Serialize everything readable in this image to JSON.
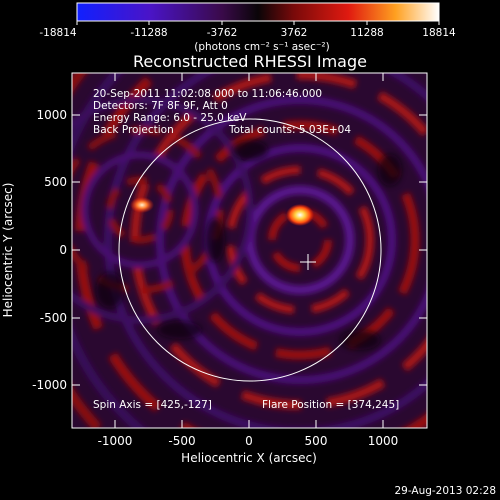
{
  "colorbar": {
    "tick_labels": [
      "-18814",
      "-11288",
      "-3762",
      "3762",
      "11288",
      "18814"
    ],
    "unit_label": "(photons cm⁻² s⁻¹ asec⁻²)"
  },
  "plot": {
    "title": "Reconstructed RHESSI Image",
    "info_lines": [
      "20-Sep-2011 11:02:08.000 to 11:06:46.000",
      "Detectors: 7F 8F 9F, Att 0",
      "Energy Range: 6.0 - 25.0 keV"
    ],
    "method": "Back Projection",
    "total_counts": "Total counts: 5.03E+04",
    "spin_axis": "Spin Axis = [425,-127]",
    "flare_position": "Flare Position = [374,245]",
    "xlabel": "Heliocentric X (arcsec)",
    "ylabel": "Heliocentric Y (arcsec)",
    "x_ticks": [
      "-1000",
      "-500",
      "0",
      "500",
      "1000"
    ],
    "y_ticks": [
      "1000",
      "500",
      "0",
      "-500",
      "-1000"
    ]
  },
  "footer": {
    "date": "29-Aug-2013 02:28"
  },
  "colors": {
    "background": "#000000",
    "solar_limb": "#ffffff"
  }
}
